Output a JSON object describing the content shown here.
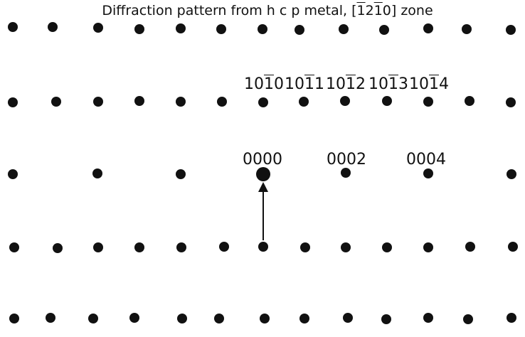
{
  "title": {
    "prefix": "Diffraction pattern from h c p metal, [",
    "h": "1",
    "k": "2",
    "i": "1",
    "l": "0",
    "suffix": "] zone"
  },
  "index_labels": [
    {
      "name": "label-10-10",
      "a": "10",
      "bar": "1",
      "b": "0"
    },
    {
      "name": "label-10-11",
      "a": "10",
      "bar": "1",
      "b": "1"
    },
    {
      "name": "label-10-12",
      "a": "10",
      "bar": "1",
      "b": "2"
    },
    {
      "name": "label-10-13",
      "a": "10",
      "bar": "1",
      "b": "3"
    },
    {
      "name": "label-10-14",
      "a": "10",
      "bar": "1",
      "b": "4"
    }
  ],
  "row_labels": [
    "0000",
    "0002",
    "0004"
  ],
  "colors": {
    "spot": "#111111",
    "background": "#ffffff"
  }
}
